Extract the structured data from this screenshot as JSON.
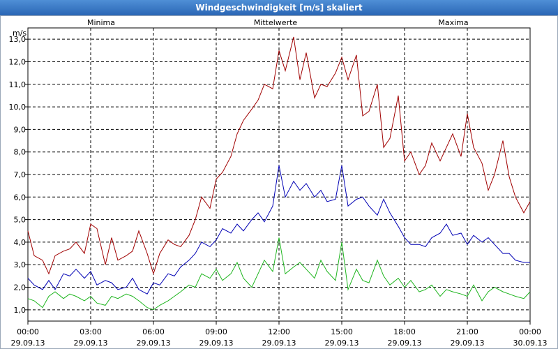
{
  "window": {
    "title": "Windgeschwindigkeit [m/s] skaliert"
  },
  "colors": {
    "minima": "#1fb51f",
    "mittel": "#0000b4",
    "maxima": "#a00000",
    "grid": "#000000"
  },
  "chart_data": {
    "type": "line",
    "title": "Windgeschwindigkeit [m/s] skaliert",
    "ylabel": "m/s",
    "ylim": [
      0.5,
      13.5
    ],
    "yticks": [
      "1,0",
      "2,0",
      "3,0",
      "4,0",
      "5,0",
      "6,0",
      "7,0",
      "8,0",
      "9,0",
      "10,0",
      "11,0",
      "12,0",
      "13,0"
    ],
    "xlim": [
      0,
      24
    ],
    "xticks": [
      {
        "time": "00:00",
        "date": "29.09.13"
      },
      {
        "time": "03:00",
        "date": "29.09.13"
      },
      {
        "time": "06:00",
        "date": "29.09.13"
      },
      {
        "time": "09:00",
        "date": "29.09.13"
      },
      {
        "time": "12:00",
        "date": "29.09.13"
      },
      {
        "time": "15:00",
        "date": "29.09.13"
      },
      {
        "time": "18:00",
        "date": "29.09.13"
      },
      {
        "time": "21:00",
        "date": "29.09.13"
      },
      {
        "time": "00:00",
        "date": "30.09.13"
      }
    ],
    "legend": [
      "Minima",
      "Mittelwerte",
      "Maxima"
    ],
    "series": [
      {
        "name": "Minima",
        "x": [
          0,
          0.3,
          0.7,
          1.0,
          1.3,
          1.7,
          2.0,
          2.3,
          2.7,
          3.0,
          3.3,
          3.7,
          4.0,
          4.3,
          4.7,
          5.0,
          5.3,
          5.7,
          6.0,
          6.3,
          6.7,
          7.0,
          7.3,
          7.7,
          8.0,
          8.3,
          8.7,
          9.0,
          9.3,
          9.7,
          10.0,
          10.3,
          10.7,
          11.0,
          11.3,
          11.7,
          12.0,
          12.3,
          12.7,
          13.0,
          13.3,
          13.7,
          14.0,
          14.3,
          14.7,
          15.0,
          15.3,
          15.7,
          16.0,
          16.3,
          16.7,
          17.0,
          17.3,
          17.7,
          18.0,
          18.3,
          18.7,
          19.0,
          19.3,
          19.7,
          20.0,
          20.3,
          20.7,
          21.0,
          21.3,
          21.7,
          22.0,
          22.3,
          22.7,
          23.0,
          23.3,
          23.7,
          24.0
        ],
        "values": [
          1.5,
          1.4,
          1.1,
          1.6,
          1.8,
          1.5,
          1.7,
          1.6,
          1.4,
          1.6,
          1.3,
          1.2,
          1.6,
          1.5,
          1.7,
          1.6,
          1.4,
          1.1,
          1.0,
          1.2,
          1.4,
          1.6,
          1.8,
          2.1,
          2.0,
          2.6,
          2.4,
          2.8,
          2.3,
          2.6,
          3.1,
          2.4,
          2.0,
          2.6,
          3.2,
          2.7,
          4.2,
          2.6,
          2.9,
          3.1,
          2.8,
          2.4,
          3.2,
          2.7,
          2.3,
          4.0,
          1.9,
          2.8,
          2.3,
          2.2,
          3.2,
          2.5,
          2.1,
          2.4,
          2.0,
          2.3,
          1.8,
          1.9,
          2.1,
          1.6,
          1.9,
          1.8,
          1.7,
          1.6,
          2.1,
          1.4,
          1.8,
          2.0,
          1.8,
          1.7,
          1.6,
          1.5,
          1.8
        ]
      },
      {
        "name": "Mittelwerte",
        "x": [
          0,
          0.3,
          0.7,
          1.0,
          1.3,
          1.7,
          2.0,
          2.3,
          2.7,
          3.0,
          3.3,
          3.7,
          4.0,
          4.3,
          4.7,
          5.0,
          5.3,
          5.7,
          6.0,
          6.3,
          6.7,
          7.0,
          7.3,
          7.7,
          8.0,
          8.3,
          8.7,
          9.0,
          9.3,
          9.7,
          10.0,
          10.3,
          10.7,
          11.0,
          11.3,
          11.7,
          12.0,
          12.3,
          12.7,
          13.0,
          13.3,
          13.7,
          14.0,
          14.3,
          14.7,
          15.0,
          15.3,
          15.7,
          16.0,
          16.3,
          16.7,
          17.0,
          17.3,
          17.7,
          18.0,
          18.3,
          18.7,
          19.0,
          19.3,
          19.7,
          20.0,
          20.3,
          20.7,
          21.0,
          21.3,
          21.7,
          22.0,
          22.3,
          22.7,
          23.0,
          23.3,
          23.7,
          24.0
        ],
        "values": [
          2.4,
          2.1,
          1.9,
          2.3,
          1.9,
          2.6,
          2.5,
          2.8,
          2.4,
          2.7,
          2.1,
          2.3,
          2.2,
          1.9,
          2.0,
          2.4,
          1.9,
          1.7,
          2.2,
          2.1,
          2.6,
          2.5,
          2.9,
          3.2,
          3.5,
          4.0,
          3.8,
          4.1,
          4.6,
          4.4,
          4.8,
          4.5,
          5.0,
          5.3,
          4.9,
          5.6,
          7.4,
          6.0,
          6.7,
          6.3,
          6.6,
          6.0,
          6.3,
          5.8,
          5.9,
          7.4,
          5.6,
          5.9,
          6.0,
          5.6,
          5.2,
          5.9,
          5.3,
          4.7,
          4.2,
          3.9,
          3.9,
          3.8,
          4.2,
          4.4,
          4.8,
          4.3,
          4.4,
          3.9,
          4.3,
          4.0,
          4.2,
          3.9,
          3.5,
          3.5,
          3.2,
          3.1,
          3.1
        ]
      },
      {
        "name": "Maxima",
        "x": [
          0,
          0.3,
          0.7,
          1.0,
          1.3,
          1.7,
          2.0,
          2.3,
          2.7,
          3.0,
          3.3,
          3.7,
          4.0,
          4.3,
          4.7,
          5.0,
          5.3,
          5.7,
          6.0,
          6.3,
          6.7,
          7.0,
          7.3,
          7.7,
          8.0,
          8.3,
          8.7,
          9.0,
          9.3,
          9.7,
          10.0,
          10.3,
          10.7,
          11.0,
          11.3,
          11.7,
          12.0,
          12.3,
          12.7,
          13.0,
          13.3,
          13.7,
          14.0,
          14.3,
          14.7,
          15.0,
          15.3,
          15.7,
          16.0,
          16.3,
          16.7,
          17.0,
          17.3,
          17.7,
          18.0,
          18.3,
          18.7,
          19.0,
          19.3,
          19.7,
          20.0,
          20.3,
          20.7,
          21.0,
          21.3,
          21.7,
          22.0,
          22.3,
          22.7,
          23.0,
          23.3,
          23.7,
          24.0
        ],
        "values": [
          4.5,
          3.4,
          3.2,
          2.6,
          3.4,
          3.6,
          3.7,
          4.0,
          3.5,
          4.8,
          4.6,
          3.0,
          4.2,
          3.2,
          3.4,
          3.6,
          4.5,
          3.5,
          2.6,
          3.5,
          4.1,
          3.9,
          3.8,
          4.3,
          5.0,
          6.0,
          5.5,
          6.8,
          7.1,
          7.8,
          8.8,
          9.4,
          9.9,
          10.3,
          11.0,
          10.8,
          12.5,
          11.6,
          13.1,
          11.2,
          12.4,
          10.4,
          11.0,
          10.9,
          11.5,
          12.2,
          11.2,
          12.3,
          9.6,
          9.8,
          11.0,
          8.2,
          8.6,
          10.5,
          7.6,
          8.0,
          7.0,
          7.4,
          8.4,
          7.6,
          8.2,
          8.8,
          7.8,
          9.7,
          8.2,
          7.5,
          6.3,
          7.0,
          8.5,
          6.9,
          6.0,
          5.3,
          5.8
        ]
      }
    ]
  }
}
